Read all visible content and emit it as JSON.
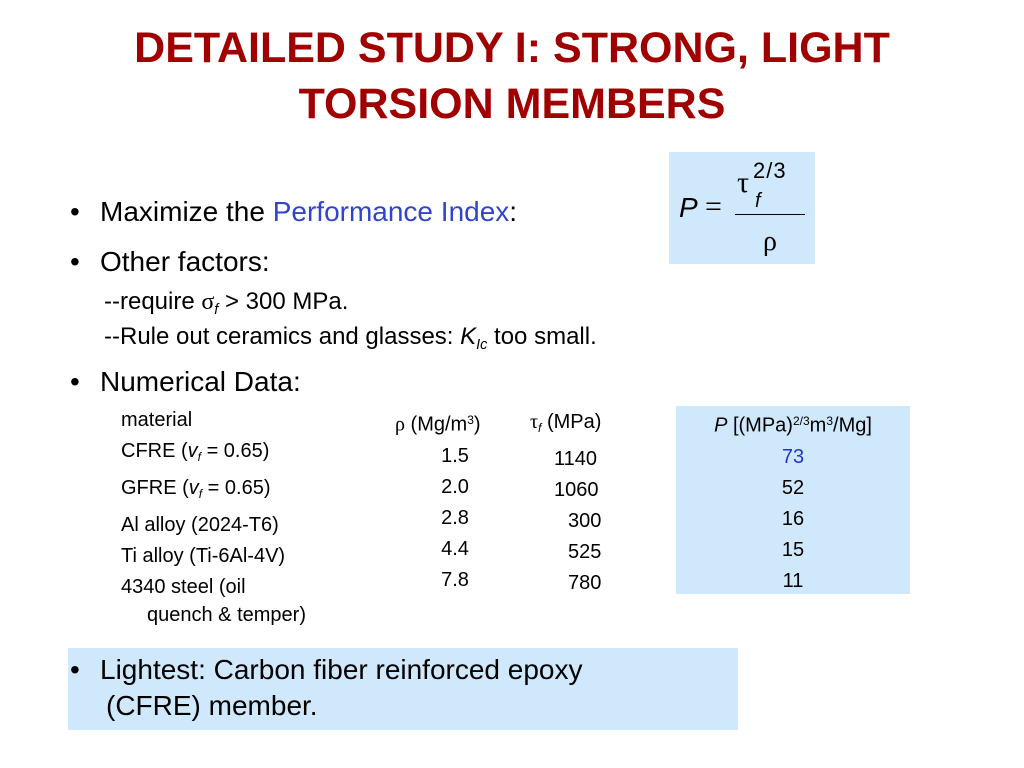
{
  "title": {
    "line1": "DETAILED STUDY I:  STRONG, LIGHT",
    "line2": "TORSION MEMBERS"
  },
  "formula": {
    "lhs": "P",
    "eq": "=",
    "tau": "τ",
    "exponent": "2/3",
    "subscript": "f",
    "denominator": "ρ"
  },
  "bullets": {
    "dot": "•",
    "maximize_prefix": "Maximize the ",
    "maximize_link": "Performance Index",
    "maximize_suffix": ":",
    "other": "Other factors:",
    "require_prefix": "--require ",
    "require_sigma": "σ",
    "require_sub": "f",
    "require_suffix": " > 300 MPa.",
    "ruleout_prefix": "--Rule out ceramics and glasses:  ",
    "ruleout_K": "K",
    "ruleout_sub": "Ic",
    "ruleout_suffix": "  too small.",
    "numerical": "Numerical Data:"
  },
  "table": {
    "material_header": "material",
    "rho_symbol": "ρ",
    "rho_unit_prefix": " (Mg/m",
    "rho_unit_exp": "3",
    "rho_unit_suffix": ")",
    "tau_symbol": "τ",
    "tau_sub": "f",
    "tau_unit": " (MPa)",
    "p_header_P": "P",
    "p_header_a": " [(MPa)",
    "p_header_exp1": "2/3",
    "p_header_b": "m",
    "p_header_exp2": "3",
    "p_header_c": "/Mg]",
    "rows": [
      {
        "pre": "CFRE (",
        "v": "v",
        "vsub": "f",
        "post": " = 0.65)",
        "rho": "1.5",
        "tau": "1140",
        "p": "73"
      },
      {
        "pre": "GFRE (",
        "v": "v",
        "vsub": "f",
        "post": " = 0.65)",
        "rho": "2.0",
        "tau": "1060",
        "p": "52"
      },
      {
        "pre": "Al alloy (2024-T6)",
        "v": "",
        "vsub": "",
        "post": "",
        "rho": "2.8",
        "tau": "  300",
        "p": "16"
      },
      {
        "pre": "Ti alloy (Ti-6Al-4V)",
        "v": "",
        "vsub": "",
        "post": "",
        "rho": "4.4",
        "tau": "  525",
        "p": "15"
      },
      {
        "pre": "4340 steel (oil",
        "v": "",
        "vsub": "",
        "post": "",
        "rho": "7.8",
        "tau": "  780",
        "p": "11"
      }
    ],
    "last_row_cont": "quench & temper)"
  },
  "conclusion": {
    "line1": "Lightest:  Carbon fiber reinforced epoxy",
    "line2": "(CFRE) member."
  },
  "colors": {
    "title": "#a00000",
    "accent": "#3344cc",
    "highlight_bg": "#cfe8fb"
  }
}
